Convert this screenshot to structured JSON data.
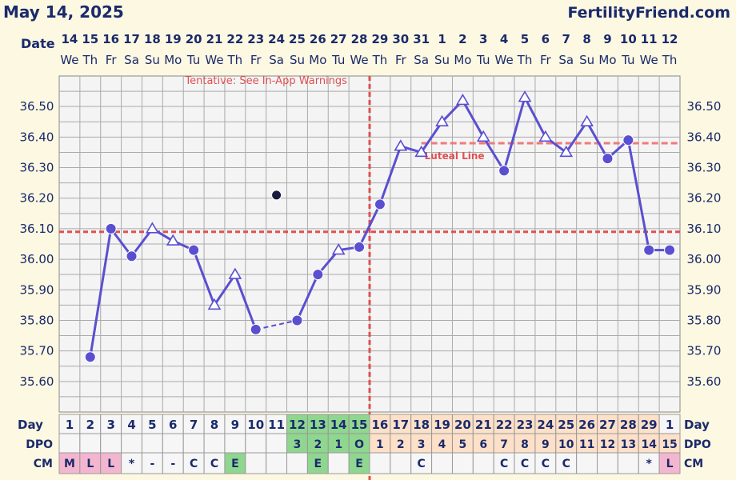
{
  "header": {
    "date_title": "May 14, 2025",
    "brand": "FertilityFriend.com"
  },
  "labels": {
    "date_row": "Date",
    "day_row": "Day",
    "dpo_row": "DPO",
    "cm_row": "CM",
    "day_row_right": "Day",
    "dpo_row_right": "DPO",
    "cm_row_right": "CM"
  },
  "chart_data": {
    "type": "line",
    "title": "",
    "ylim": [
      35.5,
      36.6
    ],
    "yticks": [
      "36.50",
      "36.40",
      "36.30",
      "36.20",
      "36.10",
      "36.00",
      "35.90",
      "35.80",
      "35.70",
      "35.60"
    ],
    "grid": true,
    "dates": [
      "14",
      "15",
      "16",
      "17",
      "18",
      "19",
      "20",
      "21",
      "22",
      "23",
      "24",
      "25",
      "26",
      "27",
      "28",
      "29",
      "30",
      "31",
      "1",
      "2",
      "3",
      "4",
      "5",
      "6",
      "7",
      "8",
      "9",
      "10",
      "11",
      "12"
    ],
    "weekdays": [
      "We",
      "Th",
      "Fr",
      "Sa",
      "Su",
      "Mo",
      "Tu",
      "We",
      "Th",
      "Fr",
      "Sa",
      "Su",
      "Mo",
      "Tu",
      "We",
      "Th",
      "Fr",
      "Sa",
      "Su",
      "Mo",
      "Tu",
      "We",
      "Th",
      "Fr",
      "Sa",
      "Su",
      "Mo",
      "Tu",
      "We",
      "Th"
    ],
    "cycle_days": [
      "1",
      "2",
      "3",
      "4",
      "5",
      "6",
      "7",
      "8",
      "9",
      "10",
      "11",
      "12",
      "13",
      "14",
      "15",
      "16",
      "17",
      "18",
      "19",
      "20",
      "21",
      "22",
      "23",
      "24",
      "25",
      "26",
      "27",
      "28",
      "29",
      "1"
    ],
    "dpo": [
      "",
      "",
      "",
      "",
      "",
      "",
      "",
      "",
      "",
      "",
      "",
      "3",
      "2",
      "1",
      "O",
      "1",
      "2",
      "3",
      "4",
      "5",
      "6",
      "7",
      "8",
      "9",
      "10",
      "11",
      "12",
      "13",
      "14",
      "15"
    ],
    "cm": [
      "M",
      "L",
      "L",
      "*",
      "-",
      "-",
      "C",
      "C",
      "E",
      "",
      "",
      "",
      "E",
      "",
      "E",
      "",
      "",
      "C",
      "",
      "",
      "",
      "C",
      "C",
      "C",
      "C",
      "",
      "",
      "",
      "*",
      "L"
    ],
    "temperatures": [
      null,
      35.68,
      36.1,
      36.01,
      36.1,
      36.06,
      36.03,
      35.85,
      35.95,
      35.77,
      36.21,
      35.8,
      35.95,
      36.03,
      36.04,
      36.18,
      36.37,
      36.35,
      36.45,
      36.52,
      36.4,
      36.29,
      36.53,
      36.4,
      36.35,
      36.45,
      36.33,
      36.39,
      36.03,
      36.03
    ],
    "markers": [
      "",
      "dot",
      "dot",
      "dot",
      "tri",
      "tri",
      "dot",
      "tri",
      "tri",
      "dot",
      "dot-open-black",
      "dot",
      "dot",
      "tri",
      "dot",
      "dot",
      "tri",
      "tri",
      "tri",
      "tri",
      "tri",
      "dot",
      "tri",
      "tri",
      "tri",
      "tri",
      "dot",
      "dot",
      "dot",
      "dot"
    ],
    "discarded_index": 10,
    "dashed_segment": [
      9,
      11
    ],
    "coverline": 36.09,
    "ovulation_index": 14,
    "luteal_line": {
      "value": 36.38,
      "from_index": 17,
      "label": "Luteal Line"
    },
    "annotation": "Tentative: See In-App Warnings",
    "colors": {
      "line": "#5a4fd0",
      "coverline": "#e05050",
      "green_cell": "#8fd68f",
      "peach_cell": "#fde0c8",
      "pink_cell": "#f4b6cf",
      "grid": "#aaaaaa",
      "plot_bg": "#f4f4f4"
    }
  }
}
